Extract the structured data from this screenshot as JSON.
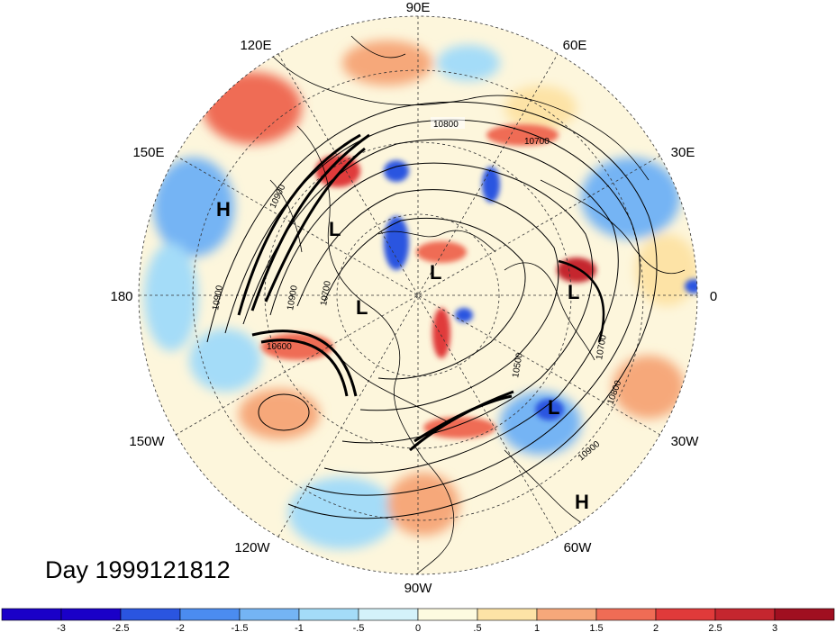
{
  "map": {
    "projection": "north-polar-stereographic",
    "longitude_labels": [
      {
        "name": "lon-label-90e",
        "text": "90E"
      },
      {
        "name": "lon-label-60e",
        "text": "60E"
      },
      {
        "name": "lon-label-120e",
        "text": "120E"
      },
      {
        "name": "lon-label-30e",
        "text": "30E"
      },
      {
        "name": "lon-label-150e",
        "text": "150E"
      },
      {
        "name": "lon-label-180",
        "text": "180"
      },
      {
        "name": "lon-label-0",
        "text": "0"
      },
      {
        "name": "lon-label-150w",
        "text": "150W"
      },
      {
        "name": "lon-label-30w",
        "text": "30W"
      },
      {
        "name": "lon-label-120w",
        "text": "120W"
      },
      {
        "name": "lon-label-60w",
        "text": "60W"
      },
      {
        "name": "lon-label-90w",
        "text": "90W"
      }
    ],
    "contour_labels": [
      "10800",
      "10700",
      "10900",
      "10600",
      "10700",
      "10900",
      "10500",
      "10700",
      "10800",
      "10900",
      "10900"
    ],
    "pressure_systems": [
      {
        "name": "high-label-pacific",
        "text": "H"
      },
      {
        "name": "low-label-alaska",
        "text": "L"
      },
      {
        "name": "low-label-arctic",
        "text": "L"
      },
      {
        "name": "low-label-canada",
        "text": "L"
      },
      {
        "name": "low-label-europe",
        "text": "L"
      },
      {
        "name": "low-label-atlantic",
        "text": "L"
      },
      {
        "name": "high-label-atlantic",
        "text": "H"
      }
    ]
  },
  "title": {
    "day": "Day 1999121812"
  },
  "colorbar": {
    "ticks": [
      "-3",
      "-2.5",
      "-2",
      "-1.5",
      "-1",
      "-.5",
      "0",
      ".5",
      "1",
      "1.5",
      "2",
      "2.5",
      "3"
    ],
    "colors": [
      "#1a00c8",
      "#2a55e0",
      "#4b8cf0",
      "#74b4f4",
      "#a4dcf8",
      "#d4f2fa",
      "#fdfbe0",
      "#fde3a6",
      "#f6a87a",
      "#ef6c55",
      "#e03a3a",
      "#c5262f",
      "#a00f20"
    ]
  }
}
